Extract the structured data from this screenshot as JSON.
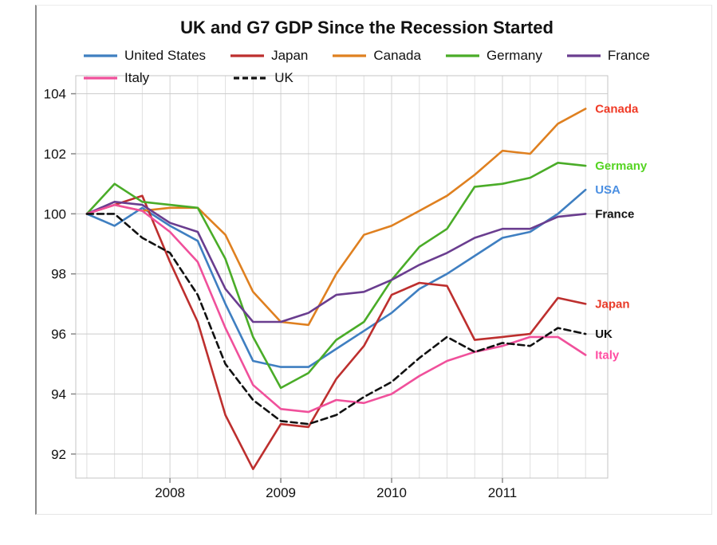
{
  "chart_data": {
    "type": "line",
    "title": "UK and G7 GDP Since the Recession Started",
    "xlabel": "",
    "ylabel": "",
    "x": [
      2007.25,
      2007.5,
      2007.75,
      2008.0,
      2008.25,
      2008.5,
      2008.75,
      2009.0,
      2009.25,
      2009.5,
      2009.75,
      2010.0,
      2010.25,
      2010.5,
      2010.75,
      2011.0,
      2011.25,
      2011.5,
      2011.75
    ],
    "x_ticks": [
      2008,
      2009,
      2010,
      2011
    ],
    "x_tick_labels": [
      "2008",
      "2009",
      "2010",
      "2011"
    ],
    "y_ticks": [
      92,
      94,
      96,
      98,
      100,
      102,
      104
    ],
    "y_tick_labels": [
      "92",
      "94",
      "96",
      "98",
      "100",
      "102",
      "104"
    ],
    "xlim": [
      2007.15,
      2011.95
    ],
    "ylim": [
      91.2,
      104.6
    ],
    "grid": true,
    "legend_position": "top",
    "legend_rows": [
      [
        "United States",
        "Japan",
        "Canada",
        "Germany",
        "France"
      ],
      [
        "Italy",
        "UK"
      ]
    ],
    "series": [
      {
        "name": "United States",
        "color": "#3f7fc1",
        "dash": "",
        "end_label": "USA",
        "end_label_color": "#4b8fe2",
        "values": [
          100.0,
          99.6,
          100.2,
          99.6,
          99.1,
          97.0,
          95.1,
          94.9,
          94.9,
          95.5,
          96.1,
          96.7,
          97.5,
          98.0,
          98.6,
          99.2,
          99.4,
          100.0,
          100.8
        ]
      },
      {
        "name": "Japan",
        "color": "#bd2f2e",
        "dash": "",
        "end_label": "Japan",
        "end_label_color": "#e83a28",
        "values": [
          100.0,
          100.3,
          100.6,
          98.4,
          96.4,
          93.3,
          91.5,
          93.0,
          92.9,
          94.5,
          95.6,
          97.3,
          97.7,
          97.6,
          95.8,
          95.9,
          96.0,
          97.2,
          97.0
        ]
      },
      {
        "name": "Canada",
        "color": "#df8020",
        "dash": "",
        "end_label": "Canada",
        "end_label_color": "#f03a26",
        "values": [
          100.0,
          100.3,
          100.1,
          100.2,
          100.2,
          99.3,
          97.4,
          96.4,
          96.3,
          98.0,
          99.3,
          99.6,
          100.1,
          100.6,
          101.3,
          102.1,
          102.0,
          103.0,
          103.5
        ]
      },
      {
        "name": "Germany",
        "color": "#4aac28",
        "dash": "",
        "end_label": "Germany",
        "end_label_color": "#55d422",
        "values": [
          100.0,
          101.0,
          100.4,
          100.3,
          100.2,
          98.5,
          95.9,
          94.2,
          94.7,
          95.8,
          96.4,
          97.8,
          98.9,
          99.5,
          100.9,
          101.0,
          101.2,
          101.7,
          101.6
        ]
      },
      {
        "name": "France",
        "color": "#6a3d8f",
        "dash": "",
        "end_label": "France",
        "end_label_color": "#111111",
        "values": [
          100.0,
          100.4,
          100.3,
          99.7,
          99.4,
          97.5,
          96.4,
          96.4,
          96.7,
          97.3,
          97.4,
          97.8,
          98.3,
          98.7,
          99.2,
          99.5,
          99.5,
          99.9,
          100.0
        ]
      },
      {
        "name": "Italy",
        "color": "#f0509b",
        "dash": "",
        "end_label": "Italy",
        "end_label_color": "#ff4da2",
        "values": [
          100.0,
          100.3,
          100.1,
          99.4,
          98.4,
          96.2,
          94.3,
          93.5,
          93.4,
          93.8,
          93.7,
          94.0,
          94.6,
          95.1,
          95.4,
          95.6,
          95.9,
          95.9,
          95.3
        ]
      },
      {
        "name": "UK",
        "color": "#111111",
        "dash": "8,5",
        "end_label": "UK",
        "end_label_color": "#111111",
        "values": [
          100.0,
          100.0,
          99.2,
          98.7,
          97.3,
          95.0,
          93.8,
          93.1,
          93.0,
          93.3,
          93.9,
          94.4,
          95.2,
          95.9,
          95.4,
          95.7,
          95.6,
          96.2,
          96.0
        ]
      }
    ]
  }
}
